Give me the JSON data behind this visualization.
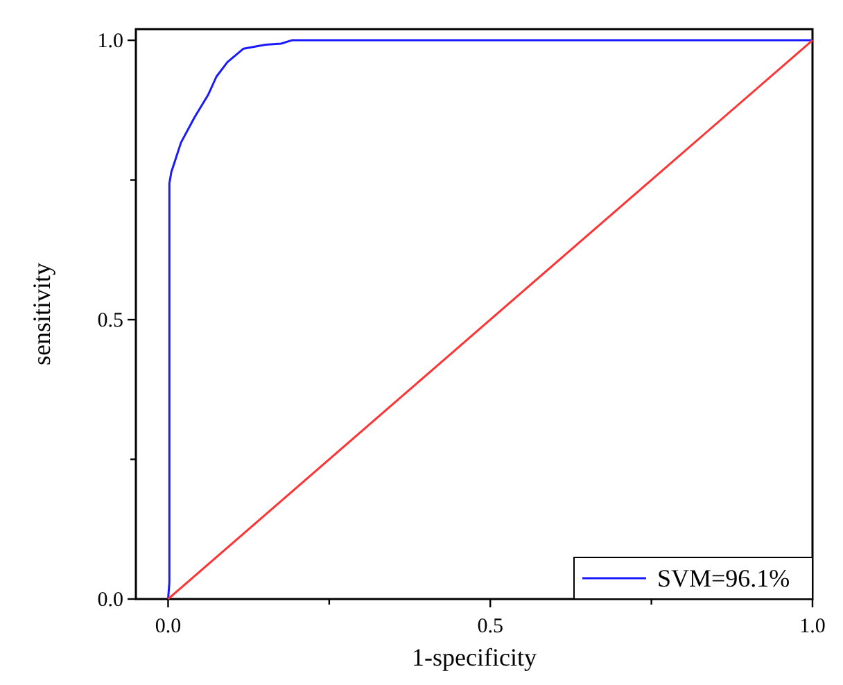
{
  "chart_data": {
    "type": "line",
    "xlabel": "1-specificity",
    "ylabel": "sensitivity",
    "xlim": [
      -0.05,
      1.0
    ],
    "ylim": [
      0,
      1.02
    ],
    "xticks": [
      {
        "value": 0,
        "label": "0.0"
      },
      {
        "value": 0.25,
        "label": null
      },
      {
        "value": 0.5,
        "label": "0.5"
      },
      {
        "value": 0.75,
        "label": null
      },
      {
        "value": 1.0,
        "label": "1.0"
      }
    ],
    "yticks": [
      {
        "value": 0,
        "label": "0.0"
      },
      {
        "value": 0.25,
        "label": null
      },
      {
        "value": 0.5,
        "label": "0.5"
      },
      {
        "value": 0.75,
        "label": null
      },
      {
        "value": 1.0,
        "label": "1.0"
      }
    ],
    "grid": false,
    "legend": "bottom right",
    "line_style": "solid",
    "series": [
      {
        "name": "SVM=96.1%",
        "color": "#1a1aff",
        "x": [
          0,
          0.002,
          0.002,
          0.005,
          0.02,
          0.041,
          0.062,
          0.075,
          0.092,
          0.117,
          0.151,
          0.175,
          0.192,
          1.0
        ],
        "values": [
          0,
          0.03,
          0.744,
          0.764,
          0.817,
          0.862,
          0.902,
          0.935,
          0.961,
          0.985,
          0.992,
          0.994,
          1.0,
          1.0
        ]
      },
      {
        "color": "#ff3333",
        "x": [
          0,
          1
        ],
        "values": [
          0,
          1
        ]
      }
    ]
  }
}
